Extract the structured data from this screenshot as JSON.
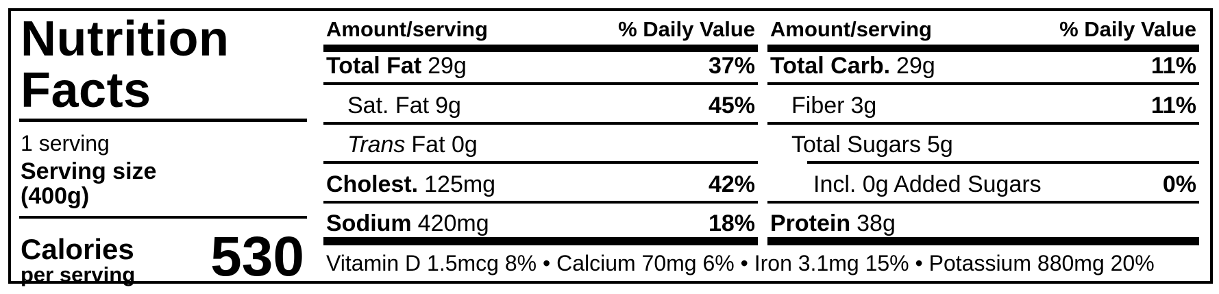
{
  "label": {
    "title_line1": "Nutrition",
    "title_line2": "Facts",
    "serving_info": {
      "servings_per_container": "1 serving",
      "serving_size_label": "Serving size",
      "serving_size_value": "(400g)"
    },
    "calories": {
      "label": "Calories",
      "sublabel": "per serving",
      "value": "530"
    },
    "columns": [
      {
        "header_amount": "Amount/serving",
        "header_dv": "% Daily Value",
        "rows": [
          {
            "name": "Total Fat",
            "amount": "29g",
            "dv": "37%"
          },
          {
            "name": "Sat. Fat",
            "amount": "9g",
            "dv": "45%"
          },
          {
            "name": "Trans",
            "amount": "Fat 0g",
            "dv": ""
          },
          {
            "name": "Cholest.",
            "amount": "125mg",
            "dv": "42%"
          },
          {
            "name": "Sodium",
            "amount": "420mg",
            "dv": "18%"
          }
        ]
      },
      {
        "header_amount": "Amount/serving",
        "header_dv": "% Daily Value",
        "rows": [
          {
            "name": "Total Carb.",
            "amount": "29g",
            "dv": "11%"
          },
          {
            "name": "Fiber",
            "amount": "3g",
            "dv": "11%"
          },
          {
            "name": "Total Sugars",
            "amount": "5g",
            "dv": ""
          },
          {
            "name": "Incl. 0g Added Sugars",
            "amount": "",
            "dv": "0%"
          },
          {
            "name": "Protein",
            "amount": "38g",
            "dv": ""
          }
        ]
      }
    ],
    "micronutrients": "Vitamin D 1.5mcg 8% • Calcium 70mg 6% • Iron 3.1mg 15% • Potassium 880mg 20%",
    "colors": {
      "ink": "#000000",
      "background": "#ffffff"
    }
  }
}
